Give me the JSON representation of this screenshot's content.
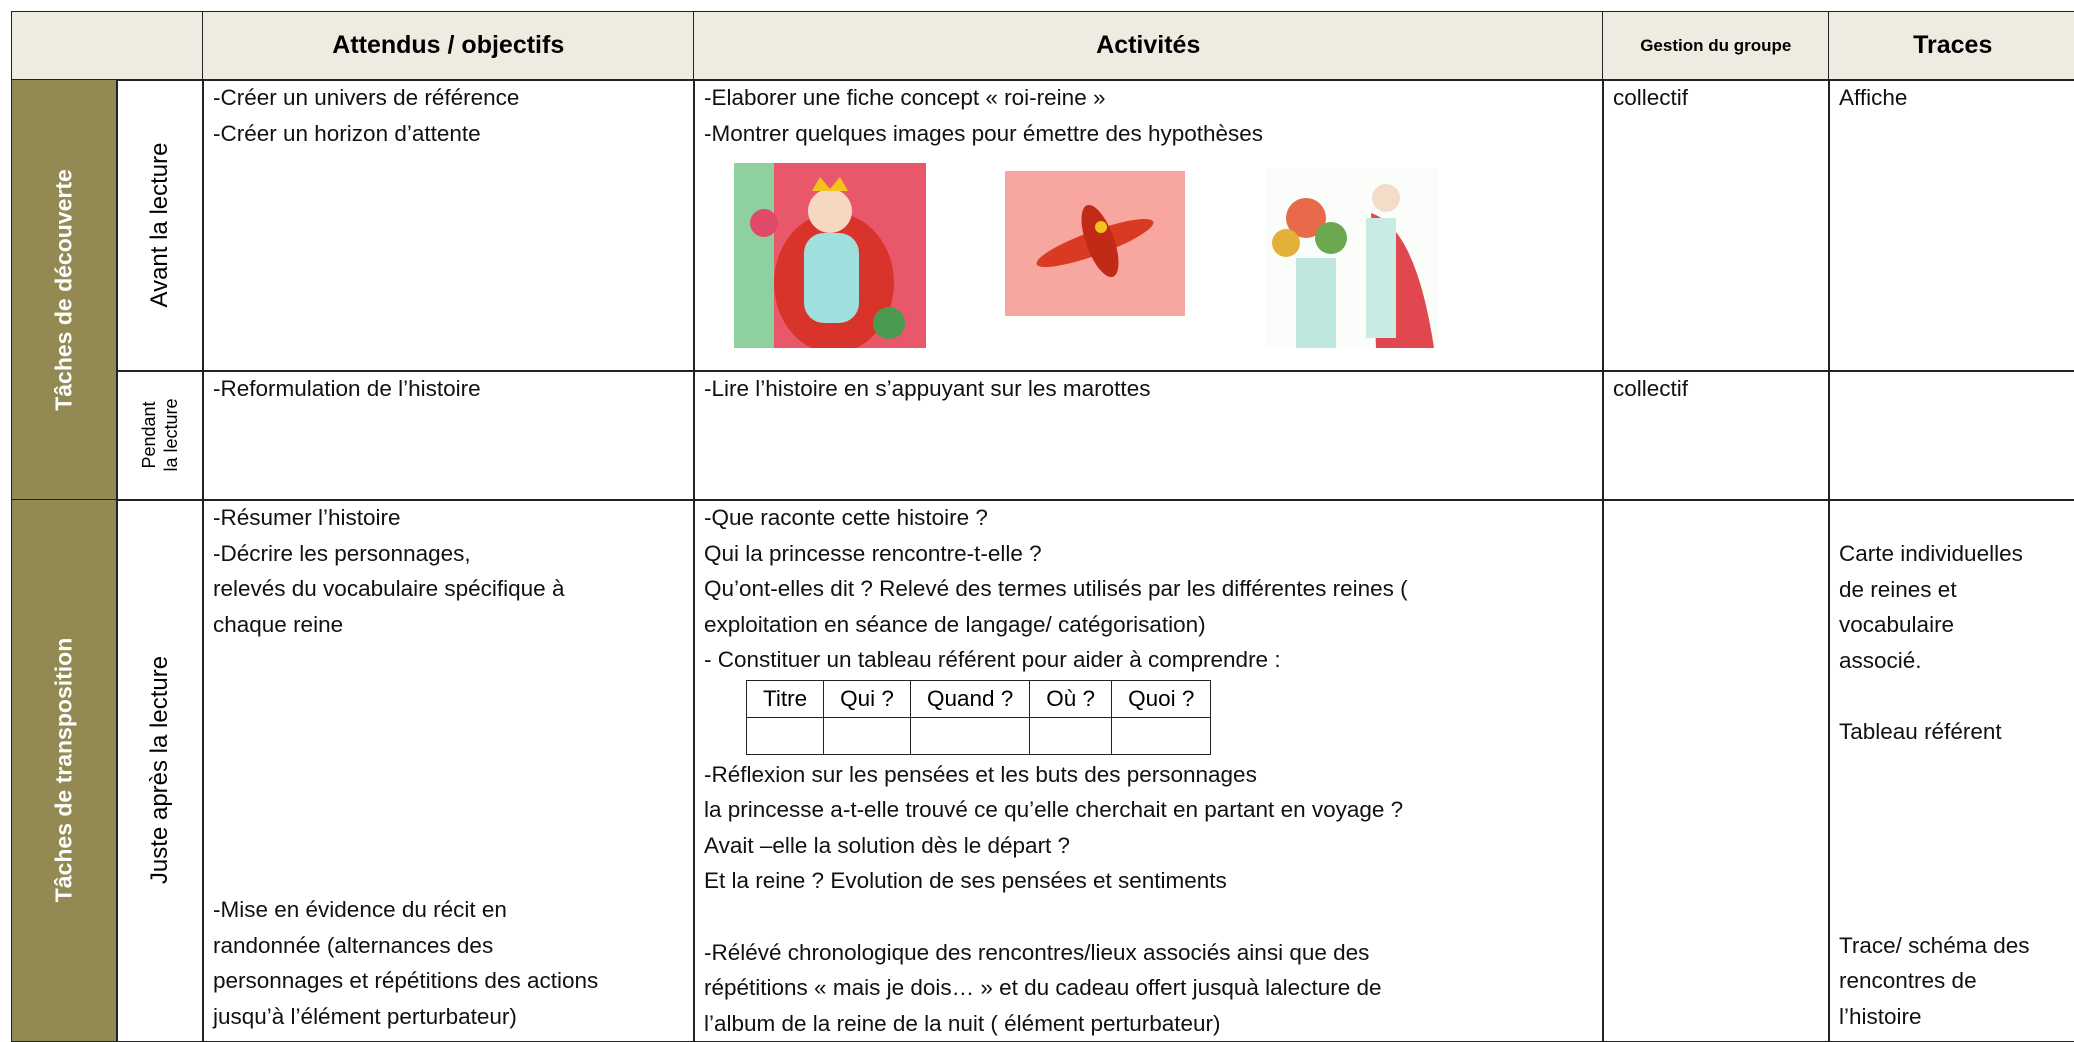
{
  "header": {
    "columns": [
      "Attendus / objectifs",
      "Activités",
      "Gestion du groupe",
      "Traces"
    ]
  },
  "groups": [
    "Tâches de découverte",
    "Tâches de transposition"
  ],
  "rows": [
    {
      "phase": [
        "Avant la lecture"
      ],
      "objectives": [
        [
          "-Créer un univers de référence",
          "-Créer un horizon d’attente"
        ]
      ],
      "activities": [
        [
          "-Elaborer une fiche concept « roi-reine »",
          "-Montrer quelques images pour émettre des hypothèses"
        ]
      ],
      "group": "collectif",
      "traces": [
        [
          "Affiche"
        ]
      ]
    },
    {
      "phase": [
        "Pendant",
        "la lecture"
      ],
      "objectives": [
        [
          "-Reformulation de l’histoire"
        ]
      ],
      "activities": [
        [
          "-Lire l’histoire en s’appuyant sur les marottes"
        ]
      ],
      "group": "collectif"
    },
    {
      "phase": [
        "Juste après la lecture"
      ],
      "objectives": [
        [
          "-Résumer l’histoire",
          "-Décrire les personnages,",
          "relevés du vocabulaire spécifique à",
          "chaque reine"
        ],
        [
          "-Mise en évidence du récit en",
          "randonnée (alternances des",
          "personnages et répétitions des actions",
          "jusqu’à l’élément perturbateur)"
        ]
      ],
      "activities": [
        [
          "-Que raconte cette histoire ?",
          "Qui la princesse rencontre-t-elle ?",
          "Qu’ont-elles dit ? Relevé des termes utilisés par les différentes reines (",
          "exploitation en séance de langage/ catégorisation)",
          "- Constituer un tableau référent  pour aider à comprendre :"
        ],
        [
          "-Réflexion sur les pensées et les buts des personnages",
          "la princesse a-t-elle trouvé ce qu’elle cherchait en partant en voyage ?",
          "Avait –elle la solution dès le départ ?",
          "Et la reine ? Evolution de ses pensées et sentiments"
        ],
        [
          "-Rélévé chronologique des rencontres/lieux associés ainsi que des",
          "répétitions «  mais je dois… » et du cadeau offert jusquà lalecture de",
          "l’album de la reine de la nuit ( élément perturbateur)"
        ]
      ],
      "reference_table": [
        "Titre",
        "Qui ?",
        "Quand ?",
        "Où ?",
        "Quoi ?"
      ],
      "traces": [
        [
          "Carte individuelles",
          "de reines et",
          "vocabulaire",
          "associé."
        ],
        [
          "Tableau référent"
        ],
        [
          "Trace/ schéma des",
          "rencontres de",
          "l’histoire"
        ]
      ]
    }
  ]
}
